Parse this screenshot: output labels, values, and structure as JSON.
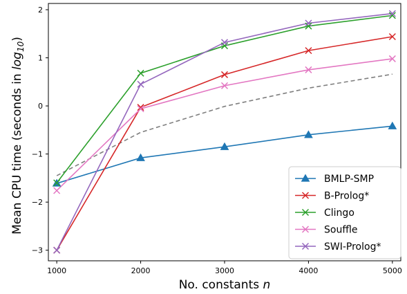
{
  "chart_data": {
    "type": "line",
    "xlabel_main": "No. constants ",
    "xlabel_var": "n",
    "ylabel_main": "Mean CPU time (seconds in ",
    "ylabel_log": "log",
    "ylabel_sub": "10",
    "ylabel_end": ")",
    "x": [
      1000,
      2000,
      3000,
      4000,
      5000
    ],
    "xlim": [
      900,
      5100
    ],
    "ylim": [
      -3.22,
      2.13
    ],
    "xticks": [
      1000,
      2000,
      3000,
      4000,
      5000
    ],
    "yticks": [
      -3,
      -2,
      -1,
      0,
      1,
      2
    ],
    "xtick_labels": [
      "1000",
      "2000",
      "3000",
      "4000",
      "5000"
    ],
    "ytick_labels": [
      "−3",
      "−2",
      "−1",
      "0",
      "1",
      "2"
    ],
    "legend_placement": "lower-right",
    "series": [
      {
        "name": "BMLP-SMP",
        "color": "#1f77b4",
        "marker": "triangle",
        "values": [
          -1.61,
          -1.08,
          -0.85,
          -0.6,
          -0.42
        ]
      },
      {
        "name": "B-Prolog*",
        "color": "#d62728",
        "marker": "x",
        "values": [
          -3.0,
          -0.03,
          0.65,
          1.15,
          1.44
        ]
      },
      {
        "name": "Clingo",
        "color": "#2ca02c",
        "marker": "x",
        "values": [
          -1.6,
          0.68,
          1.25,
          1.66,
          1.88
        ]
      },
      {
        "name": "Souffle",
        "color": "#e377c2",
        "marker": "x",
        "values": [
          -1.76,
          -0.06,
          0.42,
          0.75,
          0.98
        ]
      },
      {
        "name": "SWI-Prolog*",
        "color": "#9467bd",
        "marker": "x",
        "values": [
          -3.0,
          0.45,
          1.32,
          1.72,
          1.92
        ]
      }
    ],
    "reference_line": {
      "style": "dashed",
      "color": "#7f7f7f",
      "values": [
        -1.45,
        -0.55,
        -0.01,
        0.37,
        0.66
      ]
    }
  }
}
